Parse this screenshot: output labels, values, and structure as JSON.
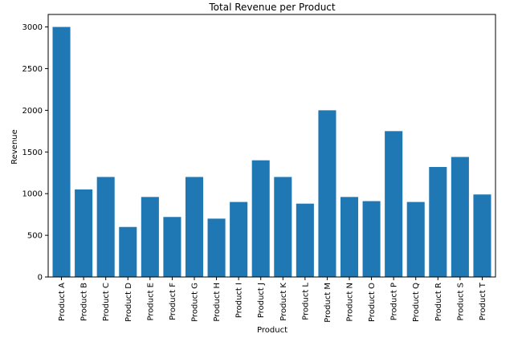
{
  "chart_data": {
    "type": "bar",
    "title": "Total Revenue per Product",
    "xlabel": "Product",
    "ylabel": "Revenue",
    "categories": [
      "Product A",
      "Product B",
      "Product C",
      "Product D",
      "Product E",
      "Product F",
      "Product G",
      "Product H",
      "Product I",
      "Product J",
      "Product K",
      "Product L",
      "Product M",
      "Product N",
      "Product O",
      "Product P",
      "Product Q",
      "Product R",
      "Product S",
      "Product T"
    ],
    "values": [
      3000,
      1050,
      1200,
      600,
      960,
      720,
      1200,
      700,
      900,
      1400,
      1200,
      880,
      2000,
      960,
      910,
      1750,
      900,
      1320,
      1440,
      990
    ],
    "ylim": [
      0,
      3150
    ],
    "yticks": [
      0,
      500,
      1000,
      1500,
      2000,
      2500,
      3000
    ],
    "bar_color": "#1f77b4",
    "grid": false,
    "legend": false
  }
}
